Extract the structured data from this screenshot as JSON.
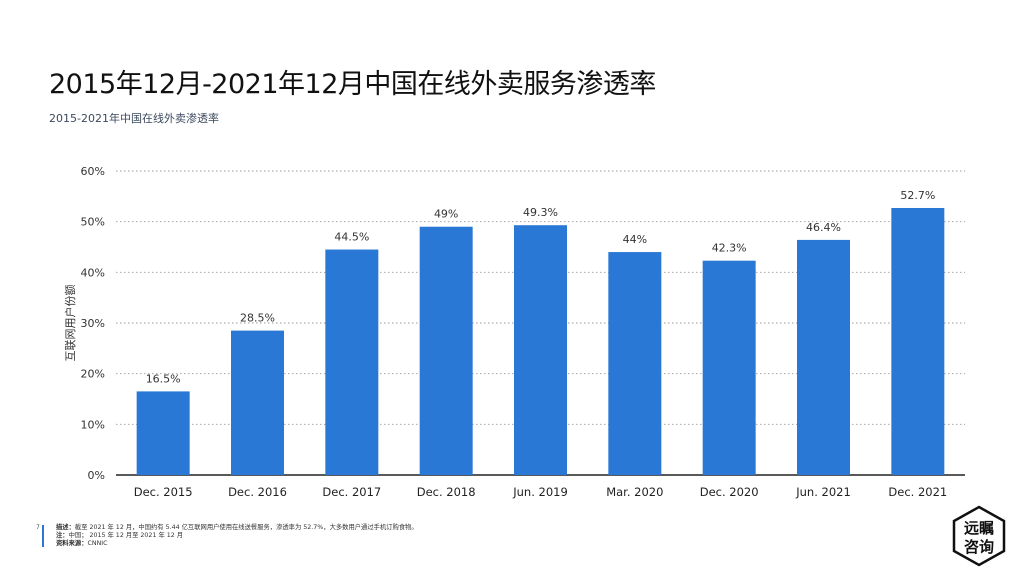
{
  "header": {
    "title": "2015年12月-2021年12月中国在线外卖服务渗透率",
    "subtitle": "2015-2021年中国在线外卖渗透率"
  },
  "colors": {
    "bar": "#2a78d6",
    "accent": "#2a78d6"
  },
  "chart_data": {
    "type": "bar",
    "categories": [
      "Dec. 2015",
      "Dec. 2016",
      "Dec. 2017",
      "Dec. 2018",
      "Jun. 2019",
      "Mar. 2020",
      "Dec. 2020",
      "Jun. 2021",
      "Dec. 2021"
    ],
    "values": [
      16.5,
      28.5,
      44.5,
      49,
      49.3,
      44,
      42.3,
      46.4,
      52.7
    ],
    "value_labels": [
      "16.5%",
      "28.5%",
      "44.5%",
      "49%",
      "49.3%",
      "44%",
      "42.3%",
      "46.4%",
      "52.7%"
    ],
    "ylabel": "互联网用户份额",
    "ylim": [
      0,
      60
    ],
    "yticks": [
      0,
      10,
      20,
      30,
      40,
      50,
      60
    ],
    "ytick_labels": [
      "0%",
      "10%",
      "20%",
      "30%",
      "40%",
      "50%",
      "60%"
    ],
    "grid": true
  },
  "footer": {
    "page_number": "7",
    "line1_label": "描述：",
    "line1_text": "截至 2021 年 12 月，中国约有 5.44 亿互联网用户使用在线送餐服务，渗透率为 52.7%，大多数用户通过手机订购食物。",
    "line2_label": "注：",
    "line2_text": "中国； 2015 年 12 月至 2021 年 12 月",
    "line3_label": "资料来源：",
    "line3_text": "CNNIC"
  },
  "logo": {
    "top_text": "远瞩",
    "bottom_text": "咨询"
  }
}
